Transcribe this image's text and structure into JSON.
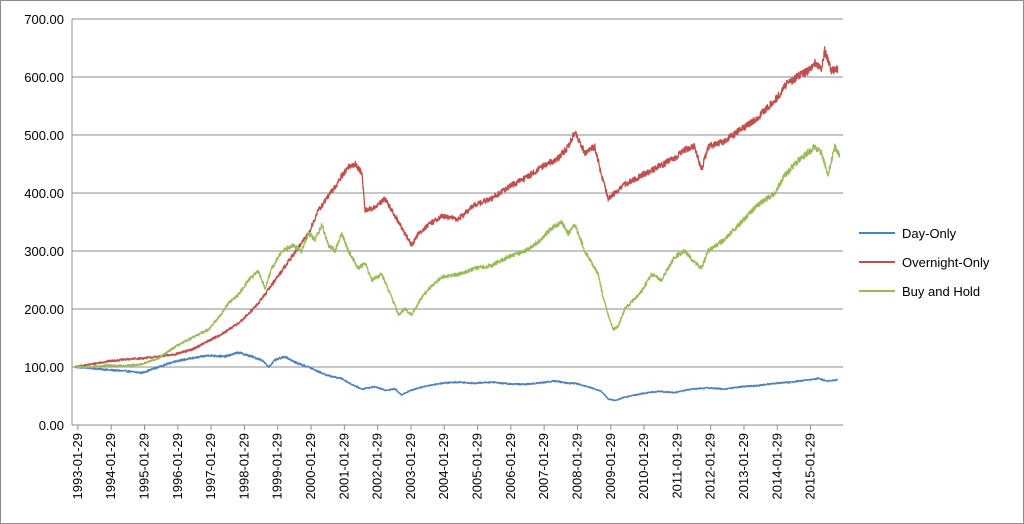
{
  "chart_data": {
    "type": "line",
    "title": "",
    "xlabel": "",
    "ylabel": "",
    "ylim": [
      0,
      700
    ],
    "y_ticks": [
      "0.00",
      "100.00",
      "200.00",
      "300.00",
      "400.00",
      "500.00",
      "600.00",
      "700.00"
    ],
    "x_ticks": [
      "1993-01-29",
      "1994-01-29",
      "1995-01-29",
      "1996-01-29",
      "1997-01-29",
      "1998-01-29",
      "1999-01-29",
      "2000-01-29",
      "2001-01-29",
      "2002-01-29",
      "2003-01-29",
      "2004-01-29",
      "2005-01-29",
      "2006-01-29",
      "2007-01-29",
      "2008-01-29",
      "2009-01-29",
      "2010-01-29",
      "2011-01-29",
      "2012-01-29",
      "2013-01-29",
      "2014-01-29",
      "2015-01-29"
    ],
    "grid": "horizontal",
    "legend_position": "right",
    "series": [
      {
        "name": "Day-Only",
        "color": "#4f81bd",
        "x": [
          1993.0,
          1993.5,
          1994.0,
          1994.5,
          1995.0,
          1995.5,
          1996.0,
          1996.5,
          1997.0,
          1997.5,
          1997.9,
          1998.3,
          1998.6,
          1998.8,
          1999.0,
          1999.3,
          1999.6,
          2000.0,
          2000.3,
          2000.6,
          2001.0,
          2001.3,
          2001.6,
          2002.0,
          2002.3,
          2002.6,
          2002.8,
          2003.0,
          2003.3,
          2003.6,
          2004.0,
          2004.5,
          2005.0,
          2005.5,
          2006.0,
          2006.5,
          2007.0,
          2007.4,
          2007.8,
          2008.0,
          2008.4,
          2008.8,
          2009.0,
          2009.2,
          2009.5,
          2010.0,
          2010.5,
          2011.0,
          2011.5,
          2012.0,
          2012.5,
          2013.0,
          2013.5,
          2014.0,
          2014.5,
          2015.0,
          2015.3,
          2015.6,
          2015.9
        ],
        "values": [
          100,
          98,
          95,
          93,
          90,
          100,
          110,
          115,
          120,
          118,
          125,
          118,
          112,
          100,
          112,
          118,
          108,
          100,
          92,
          85,
          80,
          70,
          62,
          66,
          60,
          62,
          52,
          58,
          64,
          68,
          72,
          74,
          72,
          74,
          71,
          70,
          73,
          76,
          72,
          72,
          66,
          58,
          45,
          42,
          48,
          54,
          58,
          56,
          62,
          64,
          62,
          66,
          68,
          72,
          74,
          78,
          80,
          76,
          78
        ]
      },
      {
        "name": "Overnight-Only",
        "color": "#c0504d",
        "x": [
          1993.0,
          1993.5,
          1994.0,
          1994.5,
          1995.0,
          1995.5,
          1996.0,
          1996.5,
          1997.0,
          1997.5,
          1998.0,
          1998.5,
          1999.0,
          1999.5,
          2000.0,
          2000.3,
          2000.6,
          2000.8,
          2001.0,
          2001.2,
          2001.4,
          2001.6,
          2001.7,
          2002.0,
          2002.3,
          2002.6,
          2002.9,
          2003.1,
          2003.3,
          2003.6,
          2004.0,
          2004.5,
          2005.0,
          2005.5,
          2006.0,
          2006.5,
          2007.0,
          2007.5,
          2007.8,
          2008.0,
          2008.3,
          2008.6,
          2008.8,
          2009.0,
          2009.2,
          2009.5,
          2010.0,
          2010.5,
          2011.0,
          2011.3,
          2011.6,
          2011.8,
          2012.0,
          2012.5,
          2013.0,
          2013.5,
          2014.0,
          2014.4,
          2014.8,
          2015.0,
          2015.2,
          2015.4,
          2015.5,
          2015.7,
          2015.9
        ],
        "values": [
          100,
          105,
          110,
          113,
          115,
          118,
          122,
          130,
          145,
          160,
          180,
          210,
          250,
          290,
          330,
          370,
          395,
          410,
          430,
          445,
          450,
          435,
          370,
          375,
          390,
          360,
          330,
          310,
          330,
          345,
          360,
          355,
          380,
          390,
          410,
          425,
          445,
          460,
          480,
          505,
          470,
          480,
          430,
          390,
          400,
          415,
          430,
          445,
          460,
          475,
          480,
          440,
          480,
          490,
          510,
          530,
          560,
          590,
          605,
          610,
          625,
          615,
          645,
          610,
          615
        ]
      },
      {
        "name": "Buy and Hold",
        "color": "#9bbb59",
        "x": [
          1993.0,
          1993.5,
          1994.0,
          1994.5,
          1995.0,
          1995.5,
          1996.0,
          1996.5,
          1997.0,
          1997.3,
          1997.6,
          1997.9,
          1998.2,
          1998.5,
          1998.7,
          1998.9,
          1999.2,
          1999.5,
          1999.8,
          2000.0,
          2000.2,
          2000.4,
          2000.6,
          2000.8,
          2001.0,
          2001.2,
          2001.5,
          2001.7,
          2001.9,
          2002.2,
          2002.5,
          2002.7,
          2002.9,
          2003.1,
          2003.4,
          2003.7,
          2004.0,
          2004.5,
          2005.0,
          2005.5,
          2006.0,
          2006.5,
          2007.0,
          2007.3,
          2007.6,
          2007.8,
          2008.0,
          2008.3,
          2008.5,
          2008.7,
          2008.85,
          2009.0,
          2009.15,
          2009.3,
          2009.5,
          2010.0,
          2010.3,
          2010.6,
          2011.0,
          2011.3,
          2011.6,
          2011.8,
          2012.0,
          2012.5,
          2013.0,
          2013.5,
          2014.0,
          2014.3,
          2014.6,
          2015.0,
          2015.2,
          2015.4,
          2015.6,
          2015.8,
          2015.95
        ],
        "values": [
          100,
          100,
          103,
          102,
          105,
          115,
          135,
          150,
          165,
          185,
          210,
          225,
          250,
          265,
          235,
          270,
          300,
          310,
          300,
          330,
          320,
          345,
          310,
          300,
          330,
          300,
          270,
          280,
          250,
          260,
          220,
          190,
          200,
          190,
          220,
          240,
          255,
          260,
          270,
          275,
          290,
          300,
          320,
          340,
          350,
          330,
          345,
          300,
          280,
          260,
          220,
          190,
          165,
          170,
          200,
          230,
          260,
          250,
          290,
          300,
          280,
          270,
          300,
          320,
          350,
          380,
          400,
          430,
          450,
          470,
          480,
          470,
          430,
          480,
          465
        ]
      }
    ]
  }
}
